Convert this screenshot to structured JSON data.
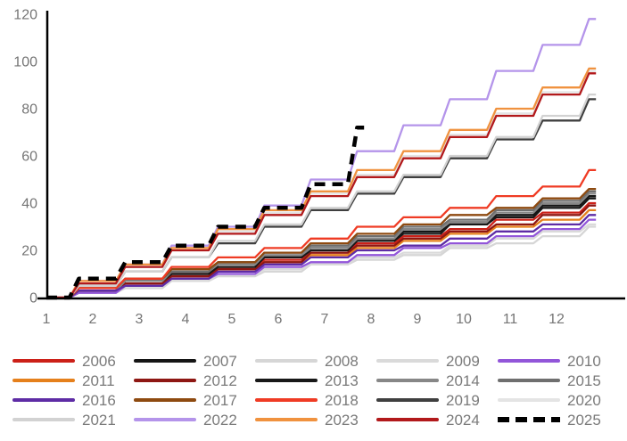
{
  "chart_data": {
    "type": "step-line",
    "title": "",
    "xlabel": "",
    "ylabel": "",
    "x_axis": {
      "ticks": [
        "1",
        "2",
        "3",
        "4",
        "5",
        "6",
        "7",
        "8",
        "9",
        "10",
        "11",
        "12"
      ],
      "range": [
        1,
        13
      ]
    },
    "y_axis": {
      "ticks": [
        0,
        20,
        40,
        60,
        80,
        100,
        120
      ],
      "range": [
        0,
        120
      ],
      "grid": false
    },
    "axis_color": "#000000",
    "tick_text_color": "#757575",
    "legend_position": "bottom",
    "series": [
      {
        "name": "2006",
        "color": "#cc2018",
        "dash": false,
        "values": [
          3,
          6,
          10,
          13,
          16,
          19,
          23,
          26,
          29,
          33,
          36,
          40
        ]
      },
      {
        "name": "2007",
        "color": "#151515",
        "dash": false,
        "values": [
          3,
          7,
          10,
          14,
          17,
          21,
          24,
          28,
          31,
          35,
          39,
          43
        ]
      },
      {
        "name": "2008",
        "color": "#d6d6d6",
        "dash": false,
        "values": [
          2,
          4,
          7,
          9,
          11,
          14,
          16,
          18,
          21,
          23,
          26,
          30
        ]
      },
      {
        "name": "2009",
        "color": "#dadada",
        "dash": false,
        "values": [
          2,
          5,
          7,
          10,
          12,
          14,
          17,
          19,
          22,
          25,
          28,
          31
        ]
      },
      {
        "name": "2010",
        "color": "#9256d9",
        "dash": false,
        "values": [
          2,
          5,
          8,
          10,
          13,
          15,
          18,
          21,
          23,
          26,
          29,
          33
        ]
      },
      {
        "name": "2011",
        "color": "#e5801c",
        "dash": false,
        "values": [
          3,
          6,
          9,
          12,
          15,
          18,
          21,
          24,
          27,
          30,
          33,
          37
        ]
      },
      {
        "name": "2012",
        "color": "#8e1713",
        "dash": false,
        "values": [
          3,
          6,
          9,
          12,
          15,
          19,
          22,
          25,
          28,
          31,
          35,
          39
        ]
      },
      {
        "name": "2013",
        "color": "#181818",
        "dash": false,
        "values": [
          3,
          7,
          10,
          13,
          17,
          20,
          24,
          27,
          31,
          34,
          38,
          42
        ]
      },
      {
        "name": "2014",
        "color": "#878787",
        "dash": false,
        "values": [
          3,
          7,
          11,
          14,
          18,
          21,
          25,
          29,
          32,
          36,
          40,
          44
        ]
      },
      {
        "name": "2015",
        "color": "#6f6f6f",
        "dash": false,
        "values": [
          4,
          8,
          11,
          15,
          19,
          22,
          26,
          30,
          33,
          37,
          41,
          45
        ]
      },
      {
        "name": "2016",
        "color": "#5e2ca5",
        "dash": false,
        "values": [
          3,
          5,
          8,
          11,
          14,
          17,
          20,
          22,
          25,
          28,
          31,
          35
        ]
      },
      {
        "name": "2017",
        "color": "#8e4a10",
        "dash": false,
        "values": [
          4,
          8,
          12,
          15,
          19,
          23,
          27,
          31,
          35,
          38,
          42,
          46
        ]
      },
      {
        "name": "2018",
        "color": "#ef3b24",
        "dash": false,
        "values": [
          4,
          8,
          13,
          17,
          21,
          25,
          30,
          34,
          38,
          43,
          47,
          54
        ]
      },
      {
        "name": "2019",
        "color": "#3f3f3f",
        "dash": false,
        "values": [
          5,
          11,
          17,
          23,
          30,
          37,
          44,
          51,
          59,
          67,
          75,
          84
        ]
      },
      {
        "name": "2020",
        "color": "#e4e4e4",
        "dash": false,
        "values": [
          6,
          13,
          20,
          28,
          36,
          44,
          52,
          60,
          69,
          78,
          87,
          96
        ]
      },
      {
        "name": "2021",
        "color": "#d2d2d2",
        "dash": false,
        "values": [
          5,
          11,
          17,
          24,
          31,
          38,
          45,
          52,
          60,
          68,
          77,
          86
        ]
      },
      {
        "name": "2022",
        "color": "#b494ea",
        "dash": false,
        "values": [
          7,
          14,
          22,
          30,
          39,
          50,
          62,
          73,
          84,
          96,
          107,
          118
        ]
      },
      {
        "name": "2023",
        "color": "#f0923f",
        "dash": false,
        "values": [
          7,
          14,
          21,
          29,
          37,
          45,
          54,
          62,
          71,
          80,
          89,
          97
        ]
      },
      {
        "name": "2024",
        "color": "#b2191b",
        "dash": false,
        "values": [
          6,
          13,
          20,
          27,
          35,
          43,
          51,
          59,
          68,
          77,
          86,
          95
        ]
      },
      {
        "name": "2025",
        "color": "#000000",
        "dash": true,
        "values": [
          8,
          15,
          22,
          30,
          38,
          48,
          72
        ]
      }
    ]
  }
}
